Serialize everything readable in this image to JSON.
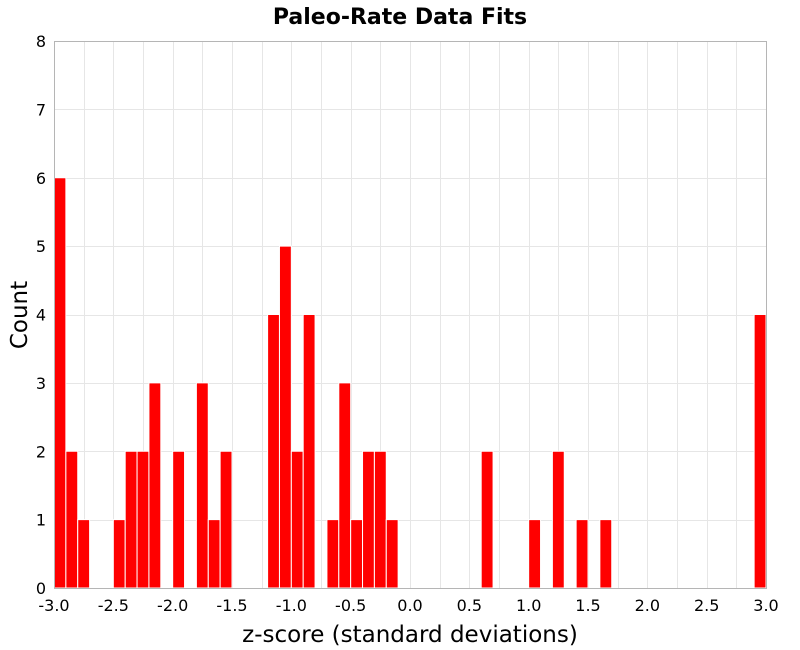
{
  "chart_data": {
    "type": "bar",
    "title": "Paleo-Rate Data Fits",
    "xlabel": "z-score (standard deviations)",
    "ylabel": "Count",
    "xlim": [
      -3.0,
      3.0
    ],
    "ylim": [
      0,
      8
    ],
    "grid": true,
    "bar_color": "#ff0000",
    "bin_width": 0.1,
    "x_ticks": [
      "-3.0",
      "-2.5",
      "-2.0",
      "-1.5",
      "-1.0",
      "-0.5",
      "0.0",
      "0.5",
      "1.0",
      "1.5",
      "2.0",
      "2.5",
      "3.0"
    ],
    "x_tick_values": [
      -3.0,
      -2.5,
      -2.0,
      -1.5,
      -1.0,
      -0.5,
      0.0,
      0.5,
      1.0,
      1.5,
      2.0,
      2.5,
      3.0
    ],
    "y_ticks": [
      "0",
      "1",
      "2",
      "3",
      "4",
      "5",
      "6",
      "7",
      "8"
    ],
    "y_tick_values": [
      0,
      1,
      2,
      3,
      4,
      5,
      6,
      7,
      8
    ],
    "bins": [
      {
        "x": -3.0,
        "count": 6
      },
      {
        "x": -2.9,
        "count": 2
      },
      {
        "x": -2.8,
        "count": 1
      },
      {
        "x": -2.5,
        "count": 1
      },
      {
        "x": -2.4,
        "count": 2
      },
      {
        "x": -2.3,
        "count": 2
      },
      {
        "x": -2.2,
        "count": 3
      },
      {
        "x": -2.0,
        "count": 2
      },
      {
        "x": -1.8,
        "count": 3
      },
      {
        "x": -1.7,
        "count": 1
      },
      {
        "x": -1.6,
        "count": 2
      },
      {
        "x": -1.2,
        "count": 4
      },
      {
        "x": -1.1,
        "count": 5
      },
      {
        "x": -1.0,
        "count": 2
      },
      {
        "x": -0.9,
        "count": 4
      },
      {
        "x": -0.7,
        "count": 1
      },
      {
        "x": -0.6,
        "count": 3
      },
      {
        "x": -0.5,
        "count": 1
      },
      {
        "x": -0.4,
        "count": 2
      },
      {
        "x": -0.3,
        "count": 2
      },
      {
        "x": -0.2,
        "count": 1
      },
      {
        "x": 0.6,
        "count": 2
      },
      {
        "x": 1.0,
        "count": 1
      },
      {
        "x": 1.2,
        "count": 2
      },
      {
        "x": 1.4,
        "count": 1
      },
      {
        "x": 1.6,
        "count": 1
      },
      {
        "x": 2.9,
        "count": 4
      }
    ]
  }
}
